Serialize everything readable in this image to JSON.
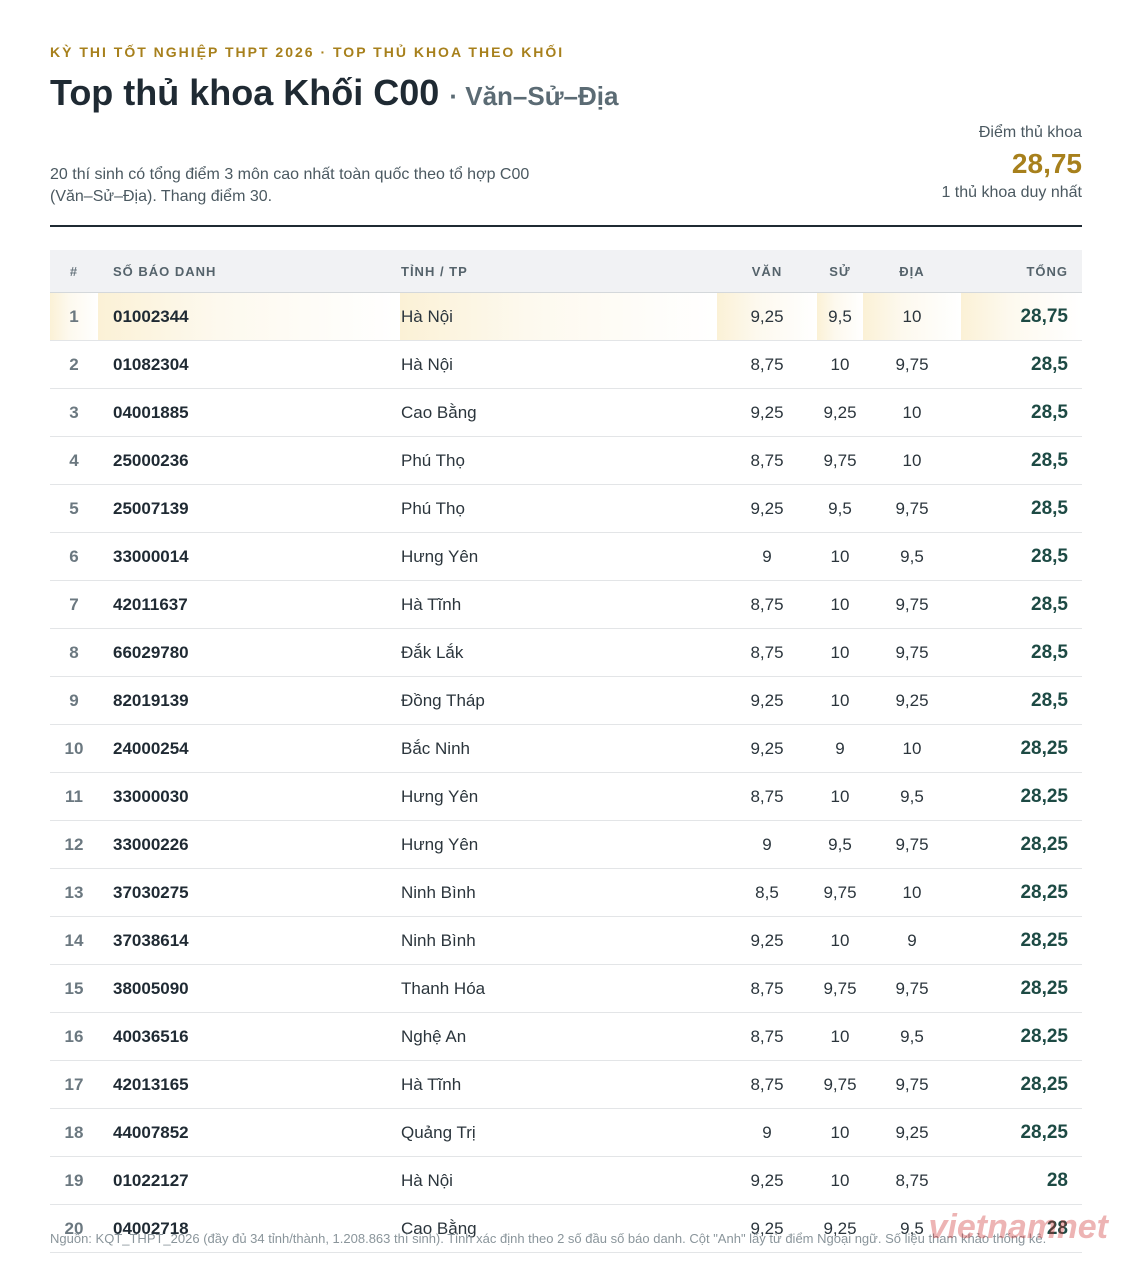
{
  "header": {
    "kicker": "KỲ THI TỐT NGHIỆP THPT 2026 · TOP THỦ KHOA THEO KHỐI",
    "title": "Top thủ khoa Khối C00",
    "subtitle": "· Văn–Sử–Địa",
    "description": "20 thí sinh có tổng điểm 3 môn cao nhất toàn quốc theo tổ hợp C00 (Văn–Sử–Địa). Thang điểm 30.",
    "score_label": "Điểm thủ khoa",
    "score": "28,75",
    "score_note": "1 thủ khoa duy nhất"
  },
  "table": {
    "columns": [
      "#",
      "SỐ BÁO DANH",
      "TỈNH / TP",
      "VĂN",
      "SỬ",
      "ĐỊA",
      "TỔNG"
    ],
    "rows": [
      [
        "1",
        "01002344",
        "Hà Nội",
        "9,25",
        "9,5",
        "10",
        "28,75"
      ],
      [
        "2",
        "01082304",
        "Hà Nội",
        "8,75",
        "10",
        "9,75",
        "28,5"
      ],
      [
        "3",
        "04001885",
        "Cao Bằng",
        "9,25",
        "9,25",
        "10",
        "28,5"
      ],
      [
        "4",
        "25000236",
        "Phú Thọ",
        "8,75",
        "9,75",
        "10",
        "28,5"
      ],
      [
        "5",
        "25007139",
        "Phú Thọ",
        "9,25",
        "9,5",
        "9,75",
        "28,5"
      ],
      [
        "6",
        "33000014",
        "Hưng Yên",
        "9",
        "10",
        "9,5",
        "28,5"
      ],
      [
        "7",
        "42011637",
        "Hà Tĩnh",
        "8,75",
        "10",
        "9,75",
        "28,5"
      ],
      [
        "8",
        "66029780",
        "Đắk Lắk",
        "8,75",
        "10",
        "9,75",
        "28,5"
      ],
      [
        "9",
        "82019139",
        "Đồng Tháp",
        "9,25",
        "10",
        "9,25",
        "28,5"
      ],
      [
        "10",
        "24000254",
        "Bắc Ninh",
        "9,25",
        "9",
        "10",
        "28,25"
      ],
      [
        "11",
        "33000030",
        "Hưng Yên",
        "8,75",
        "10",
        "9,5",
        "28,25"
      ],
      [
        "12",
        "33000226",
        "Hưng Yên",
        "9",
        "9,5",
        "9,75",
        "28,25"
      ],
      [
        "13",
        "37030275",
        "Ninh Bình",
        "8,5",
        "9,75",
        "10",
        "28,25"
      ],
      [
        "14",
        "37038614",
        "Ninh Bình",
        "9,25",
        "10",
        "9",
        "28,25"
      ],
      [
        "15",
        "38005090",
        "Thanh Hóa",
        "8,75",
        "9,75",
        "9,75",
        "28,25"
      ],
      [
        "16",
        "40036516",
        "Nghệ An",
        "8,75",
        "10",
        "9,5",
        "28,25"
      ],
      [
        "17",
        "42013165",
        "Hà Tĩnh",
        "8,75",
        "9,75",
        "9,75",
        "28,25"
      ],
      [
        "18",
        "44007852",
        "Quảng Trị",
        "9",
        "10",
        "9,25",
        "28,25"
      ],
      [
        "19",
        "01022127",
        "Hà Nội",
        "9,25",
        "10",
        "8,75",
        "28"
      ],
      [
        "20",
        "04002718",
        "Cao Bằng",
        "9,25",
        "9,25",
        "9,5",
        "28"
      ]
    ]
  },
  "footer": {
    "source": "Nguồn: KQT_THPT_2026 (đầy đủ 34 tỉnh/thành, 1.208.863 thí sinh). Tỉnh xác định theo 2 số đầu số báo danh. Cột \"Anh\" lấy từ điểm Ngoại ngữ. Số liệu tham khảo thống kê.",
    "watermark": "vietnamnet"
  }
}
